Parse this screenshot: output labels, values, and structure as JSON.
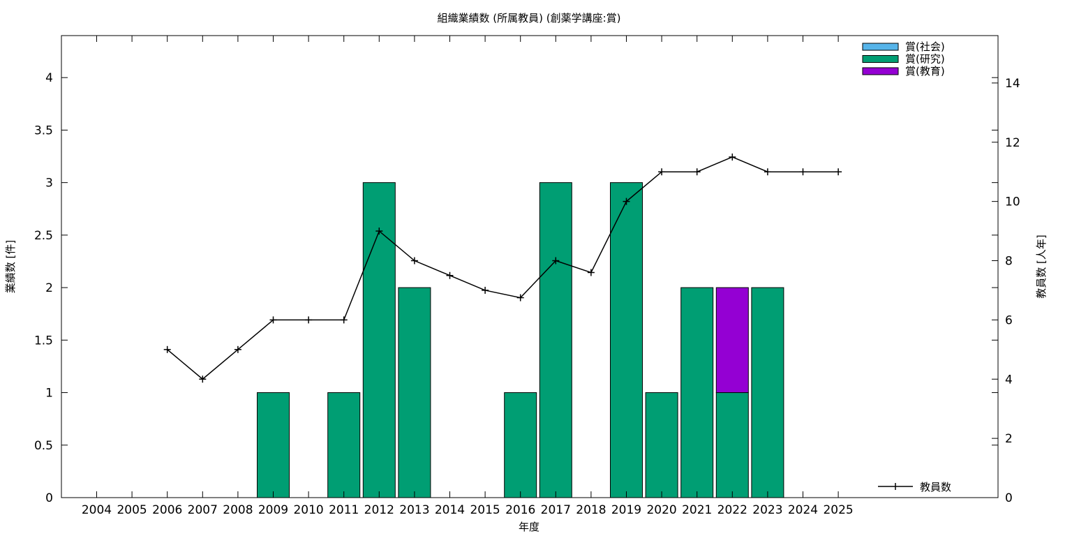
{
  "chart_data": {
    "type": "bar",
    "title": "組織業績数 (所属教員) (創薬学講座:賞)",
    "xlabel": "年度",
    "ylabel": "業績数 [件]",
    "y2label": "教員数 [人年]",
    "categories": [
      "2004",
      "2005",
      "2006",
      "2007",
      "2008",
      "2009",
      "2010",
      "2011",
      "2012",
      "2013",
      "2014",
      "2015",
      "2016",
      "2017",
      "2018",
      "2019",
      "2020",
      "2021",
      "2022",
      "2023",
      "2024",
      "2025"
    ],
    "ylim": [
      0,
      4.4
    ],
    "yticks": [
      "0",
      "0.5",
      "1",
      "1.5",
      "2",
      "2.5",
      "3",
      "3.5",
      "4"
    ],
    "y2lim": [
      0,
      15.6
    ],
    "y2ticks": [
      "0",
      "2",
      "4",
      "6",
      "8",
      "10",
      "12",
      "14"
    ],
    "stacked": true,
    "series": [
      {
        "name": "賞(社会)",
        "color": "#56b4e9",
        "values": [
          0,
          0,
          0,
          0,
          0,
          0,
          0,
          0,
          0,
          0,
          0,
          0,
          0,
          0,
          0,
          0,
          0,
          0,
          0,
          0,
          0,
          0
        ]
      },
      {
        "name": "賞(研究)",
        "color": "#009e73",
        "values": [
          0,
          0,
          0,
          0,
          0,
          1,
          0,
          1,
          3,
          2,
          0,
          0,
          1,
          3,
          0,
          3,
          1,
          2,
          1,
          2,
          0,
          0
        ]
      },
      {
        "name": "賞(教育)",
        "color": "#9400d3",
        "values": [
          0,
          0,
          0,
          0,
          0,
          0,
          0,
          0,
          0,
          0,
          0,
          0,
          0,
          0,
          0,
          0,
          0,
          0,
          1,
          0,
          0,
          0
        ]
      }
    ],
    "line_series": {
      "name": "教員数",
      "axis": "y2",
      "color": "#000000",
      "values": [
        null,
        null,
        5,
        4,
        5,
        6,
        6,
        6,
        9,
        8,
        7.5,
        7,
        6.75,
        8,
        7.6,
        10,
        11,
        11,
        11.5,
        11,
        11,
        11
      ]
    },
    "legend_position": "top-right",
    "line_legend_position": "bottom-right",
    "grid": false
  }
}
